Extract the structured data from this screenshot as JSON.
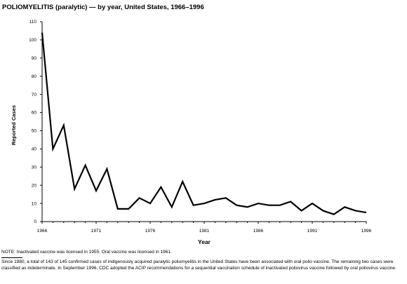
{
  "chart_data": {
    "type": "line",
    "title": "POLIOMYELITIS (paralytic) — by year, United States, 1966–1996",
    "xlabel": "Year",
    "ylabel": "Reported Cases",
    "xlim": [
      1966,
      1996
    ],
    "ylim": [
      0,
      110
    ],
    "x_ticks": [
      1966,
      1971,
      1976,
      1981,
      1986,
      1991,
      1996
    ],
    "y_ticks": [
      0,
      10,
      20,
      30,
      40,
      50,
      60,
      70,
      80,
      90,
      100,
      110
    ],
    "grid": false,
    "x": [
      1966,
      1967,
      1968,
      1969,
      1970,
      1971,
      1972,
      1973,
      1974,
      1975,
      1976,
      1977,
      1978,
      1979,
      1980,
      1981,
      1982,
      1983,
      1984,
      1985,
      1986,
      1987,
      1988,
      1989,
      1990,
      1991,
      1992,
      1993,
      1994,
      1995,
      1996
    ],
    "series": [
      {
        "values": [
          104,
          40,
          53,
          18,
          31,
          17,
          29,
          7,
          7,
          13,
          10,
          19,
          8,
          22,
          9,
          10,
          12,
          13,
          9,
          8,
          10,
          9,
          9,
          11,
          6,
          10,
          6,
          4,
          8,
          6,
          5
        ],
        "color": "#000000"
      }
    ]
  },
  "note": "NOTE: Inactivated vaccine was licensed in 1955. Oral vaccine was licensed in 1961.",
  "footnote": "Since 1980, a total of 143 of 145 confirmed cases of indigenously acquired paralytic poliomyelitis in the United States have been associated with oral polio vaccine. The remaining two cases were classified as indeterminate. In September 1996, CDC adopted the ACIP recommendations for a sequential vaccination schedule of inactivated poliovirus vaccine followed by oral poliovirus vaccine."
}
